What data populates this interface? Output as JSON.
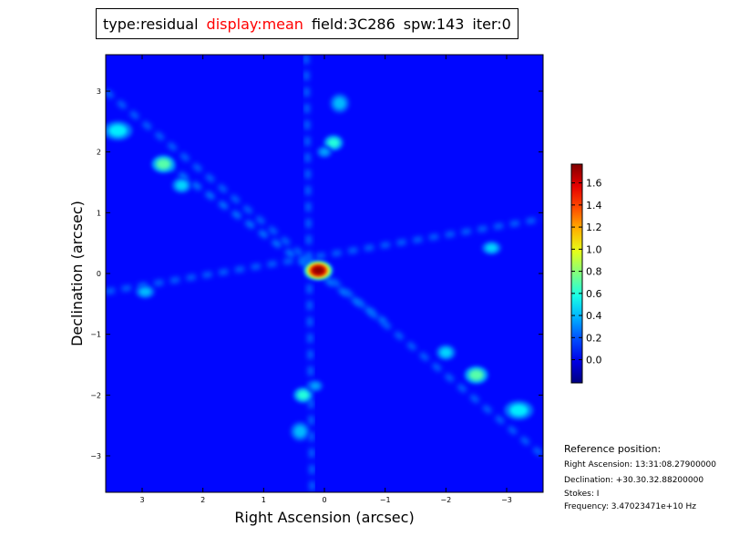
{
  "title_parts": [
    {
      "text": "type:residual",
      "color": "#000000"
    },
    {
      "text": "display:mean",
      "color": "#ff0000"
    },
    {
      "text": "field:3C286",
      "color": "#000000"
    },
    {
      "text": "spw:143",
      "color": "#000000"
    },
    {
      "text": "iter:0",
      "color": "#000000"
    }
  ],
  "reference": {
    "heading": "Reference position:",
    "lines": [
      "Right Ascension: 13:31:08.27900000",
      "Declination: +30.30.32.88200000",
      "Stokes: I",
      "Frequency: 3.47023471e+10 Hz"
    ]
  },
  "chart_data": {
    "type": "heatmap",
    "colormap": "jet",
    "xlabel": "Right Ascension (arcsec)",
    "ylabel": "Declination (arcsec)",
    "xlim": [
      3.6,
      -3.6
    ],
    "ylim": [
      -3.6,
      3.6
    ],
    "xticks": [
      3,
      2,
      1,
      0,
      -1,
      -2,
      -3
    ],
    "xtick_labels": [
      "3",
      "2",
      "1",
      "0",
      "−1",
      "−2",
      "−3"
    ],
    "yticks": [
      3,
      2,
      1,
      0,
      -1,
      -2,
      -3
    ],
    "ytick_labels": [
      "3",
      "2",
      "1",
      "0",
      "−1",
      "−2",
      "−3"
    ],
    "background_value": 0.05,
    "colorbar": {
      "range": [
        -0.21,
        1.77
      ],
      "ticks": [
        0.0,
        0.2,
        0.4,
        0.6,
        0.8,
        1.0,
        1.2,
        1.4,
        1.6
      ],
      "tick_labels": [
        "0.0",
        "0.2",
        "0.4",
        "0.6",
        "0.8",
        "1.0",
        "1.2",
        "1.4",
        "1.6"
      ]
    },
    "ridges": [
      {
        "from": [
          3.6,
          3.0
        ],
        "to": [
          -3.6,
          -3.0
        ],
        "value": 0.25
      },
      {
        "from": [
          3.6,
          -0.3
        ],
        "to": [
          -3.6,
          0.9
        ],
        "value": 0.25
      },
      {
        "from": [
          0.3,
          3.6
        ],
        "to": [
          0.2,
          -3.6
        ],
        "value": 0.25
      },
      {
        "from": [
          2.6,
          1.8
        ],
        "to": [
          -1.0,
          -0.8
        ],
        "value": 0.3
      }
    ],
    "peaks": [
      {
        "x": 0.1,
        "y": 0.05,
        "value": 1.75,
        "sx": 0.15,
        "sy": 0.1
      },
      {
        "x": 2.65,
        "y": 1.8,
        "value": 0.7,
        "sx": 0.12,
        "sy": 0.09
      },
      {
        "x": -2.5,
        "y": -1.67,
        "value": 0.7,
        "sx": 0.12,
        "sy": 0.09
      },
      {
        "x": 3.4,
        "y": 2.35,
        "value": 0.5,
        "sx": 0.15,
        "sy": 0.1
      },
      {
        "x": -3.2,
        "y": -2.25,
        "value": 0.5,
        "sx": 0.15,
        "sy": 0.1
      },
      {
        "x": -0.15,
        "y": 2.15,
        "value": 0.6,
        "sx": 0.1,
        "sy": 0.08
      },
      {
        "x": 0.35,
        "y": -2.0,
        "value": 0.6,
        "sx": 0.1,
        "sy": 0.08
      },
      {
        "x": 2.35,
        "y": 1.45,
        "value": 0.45,
        "sx": 0.1,
        "sy": 0.08
      },
      {
        "x": -2.0,
        "y": -1.3,
        "value": 0.45,
        "sx": 0.1,
        "sy": 0.08
      },
      {
        "x": 2.95,
        "y": -0.3,
        "value": 0.4,
        "sx": 0.1,
        "sy": 0.07
      },
      {
        "x": -2.75,
        "y": 0.42,
        "value": 0.45,
        "sx": 0.1,
        "sy": 0.07
      },
      {
        "x": -0.25,
        "y": 2.8,
        "value": 0.4,
        "sx": 0.1,
        "sy": 0.1
      },
      {
        "x": 0.4,
        "y": -2.6,
        "value": 0.4,
        "sx": 0.1,
        "sy": 0.1
      },
      {
        "x": 0.0,
        "y": 2.0,
        "value": 0.35,
        "sx": 0.08,
        "sy": 0.06
      },
      {
        "x": 0.15,
        "y": -1.85,
        "value": 0.35,
        "sx": 0.08,
        "sy": 0.06
      }
    ]
  }
}
